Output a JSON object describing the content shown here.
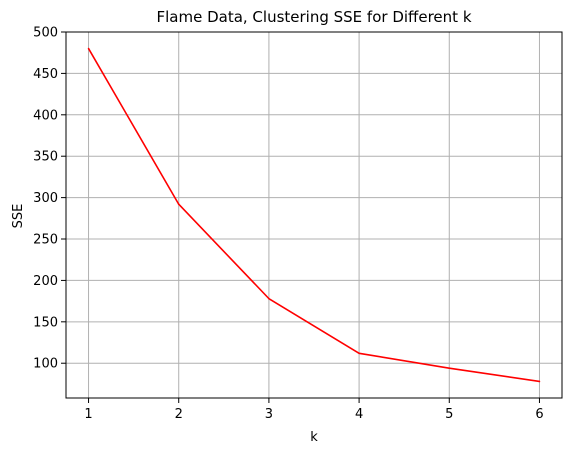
{
  "chart_data": {
    "type": "line",
    "title": "Flame Data, Clustering SSE for Different k",
    "xlabel": "k",
    "ylabel": "SSE",
    "x": [
      1,
      2,
      3,
      4,
      5,
      6
    ],
    "series": [
      {
        "values": [
          480,
          292,
          178,
          112,
          94,
          78
        ],
        "color": "#ff0000"
      }
    ],
    "xlim": [
      0.75,
      6.25
    ],
    "ylim": [
      58,
      500
    ],
    "xticks": [
      1,
      2,
      3,
      4,
      5,
      6
    ],
    "yticks": [
      100,
      150,
      200,
      250,
      300,
      350,
      400,
      450,
      500
    ],
    "grid": true,
    "grid_color": "#b0b0b0"
  }
}
